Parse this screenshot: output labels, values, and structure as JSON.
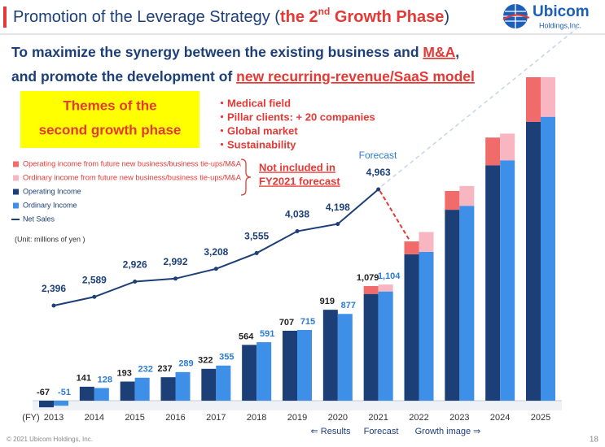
{
  "header": {
    "title": {
      "prefix": "Promotion of the Leverage Strategy (",
      "highlight": "the 2",
      "superscript": "nd",
      "highlight_end": " Growth Phase",
      "suffix": ")"
    },
    "logo": {
      "name": "Ubicom",
      "sub": "Holdings,Inc."
    }
  },
  "subtitle": {
    "line1": {
      "text": "To maximize the synergy between the existing business and ",
      "highlight": "M&A",
      "end": ","
    },
    "line2": {
      "text": "and promote the development of ",
      "highlight": "new recurring-revenue/SaaS model"
    }
  },
  "themes": {
    "title": [
      "Themes of the",
      "second growth phase"
    ],
    "items": [
      "・Medical field",
      "・Pillar clients: + 20 companies",
      "・Global market",
      "・Sustainability"
    ]
  },
  "chart_data": {
    "type": "bar",
    "x_label": "(FY)",
    "categories": [
      "2013",
      "2014",
      "2015",
      "2016",
      "2017",
      "2018",
      "2019",
      "2020",
      "2021",
      "2022",
      "2023",
      "2024",
      "2025"
    ],
    "series": [
      {
        "name": "Operating income from future new business/business tie-ups/M&A",
        "color": "#f26b6b",
        "stacked_on": 2,
        "values": [
          null,
          null,
          null,
          null,
          null,
          null,
          null,
          null,
          80,
          130,
          190,
          280,
          450
        ]
      },
      {
        "name": "Ordinary income from future new business/business tie-ups/M&A",
        "color": "#f8b6c2",
        "stacked_on": 3,
        "values": [
          null,
          null,
          null,
          null,
          null,
          null,
          null,
          null,
          70,
          200,
          200,
          270,
          400
        ]
      },
      {
        "name": "Operating Income",
        "color": "#1c3f78",
        "values": [
          -67,
          141,
          193,
          237,
          322,
          564,
          707,
          919,
          1079,
          1480,
          1930,
          2380,
          2820
        ],
        "value_labels": [
          "-67",
          "141",
          "193",
          "237",
          "322",
          "564",
          "707",
          "919",
          "1,079",
          null,
          null,
          null,
          null
        ]
      },
      {
        "name": "Ordinary Income",
        "color": "#3d8fe8",
        "values": [
          -51,
          128,
          232,
          289,
          355,
          591,
          715,
          877,
          1104,
          1505,
          1970,
          2430,
          2870
        ],
        "value_labels": [
          "-51",
          "128",
          "232",
          "289",
          "355",
          "591",
          "715",
          "877",
          "1,104",
          null,
          null,
          null,
          null
        ]
      },
      {
        "name": "Net Sales",
        "type": "line",
        "axis": "y2",
        "color": "#1c3f78",
        "values": [
          2396,
          2589,
          2926,
          2992,
          3208,
          3555,
          4038,
          4198,
          4963,
          null,
          null,
          null,
          null
        ],
        "value_labels": [
          "2,396",
          "2,589",
          "2,926",
          "2,992",
          "3,208",
          "3,555",
          "4,038",
          "4,198",
          "4,963",
          null,
          null,
          null,
          null
        ]
      }
    ],
    "unit": "(Unit: millions of yen )",
    "annotations": {
      "forecast": "Forecast",
      "not_included": [
        "Not included in",
        "FY2021 forecast"
      ],
      "timeline": [
        "⇐ Results",
        "Forecast",
        "Growth image ⇒"
      ]
    }
  },
  "footer": {
    "copyright": "© 2021 Ubicom Holdings, Inc.",
    "page": "18"
  }
}
